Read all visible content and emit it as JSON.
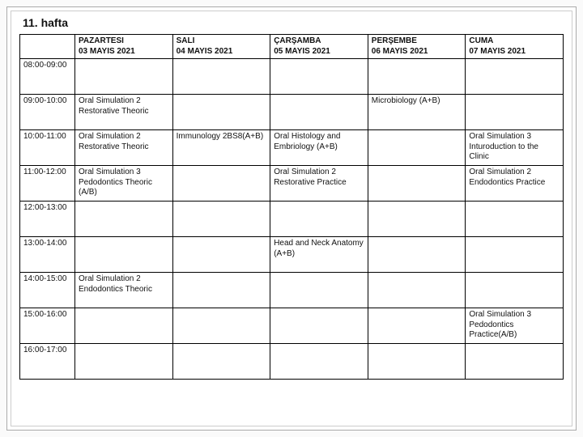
{
  "title": "11. hafta",
  "colors": {
    "border": "#000000",
    "frame_outer": "#aaaaaa",
    "frame_inner": "#cccccc",
    "text": "#111111",
    "bg": "#ffffff"
  },
  "fontsize": {
    "title": 14,
    "cell": 10
  },
  "days": [
    {
      "label": "PAZARTESI",
      "date": "03 MAYIS 2021"
    },
    {
      "label": "SALI",
      "date": "04 MAYIS 2021"
    },
    {
      "label": "ÇARŞAMBA",
      "date": "05 MAYIS 2021"
    },
    {
      "label": "PERŞEMBE",
      "date": "06 MAYIS 2021"
    },
    {
      "label": "CUMA",
      "date": "07 MAYIS 2021"
    }
  ],
  "rows": [
    {
      "time": "08:00-09:00",
      "c0": "",
      "c1": "",
      "c2": "",
      "c3": "",
      "c4": ""
    },
    {
      "time": "09:00-10:00",
      "c0": "Oral Simulation 2 Restorative Theoric",
      "c1": "",
      "c2": "",
      "c3": "Microbiology (A+B)",
      "c4": ""
    },
    {
      "time": "10:00-11:00",
      "c0": "Oral Simulation 2 Restorative Theoric",
      "c1": "Immunology 2BS8(A+B)",
      "c2": "Oral Histology and Embriology (A+B)",
      "c3": "",
      "c4": "Oral Simulation 3 Inturoduction to the Clinic"
    },
    {
      "time": "11:00-12:00",
      "c0": "Oral Simulation 3 Pedodontics Theoric (A/B)",
      "c1": "",
      "c2": "Oral Simulation 2 Restorative Practice",
      "c3": "",
      "c4": "Oral Simulation 2 Endodontics Practice"
    },
    {
      "time": "12:00-13:00",
      "c0": "",
      "c1": "",
      "c2": "",
      "c3": "",
      "c4": ""
    },
    {
      "time": "13:00-14:00",
      "c0": "",
      "c1": "",
      "c2": "Head and Neck Anatomy (A+B)",
      "c3": "",
      "c4": ""
    },
    {
      "time": "14:00-15:00",
      "c0": "Oral Simulation 2 Endodontics Theoric",
      "c1": "",
      "c2": "",
      "c3": "",
      "c4": ""
    },
    {
      "time": "15:00-16:00",
      "c0": "",
      "c1": "",
      "c2": "",
      "c3": "",
      "c4": "Oral Simulation 3 Pedodontics Practice(A/B)"
    },
    {
      "time": "16:00-17:00",
      "c0": "",
      "c1": "",
      "c2": "",
      "c3": "",
      "c4": ""
    }
  ]
}
